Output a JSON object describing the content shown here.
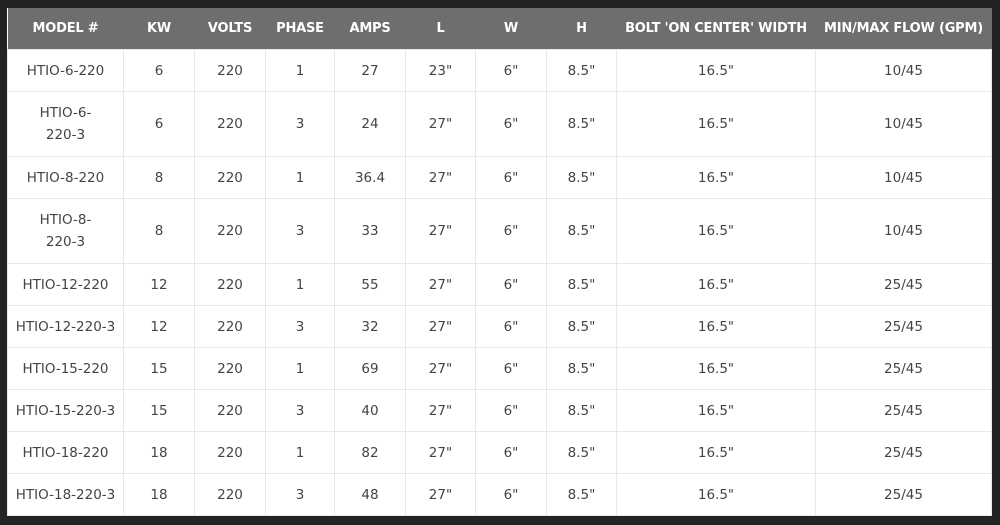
{
  "table": {
    "headers": [
      "MODEL #",
      "KW",
      "VOLTS",
      "PHASE",
      "AMPS",
      "L",
      "W",
      "H",
      "BOLT 'ON CENTER' WIDTH",
      "MIN/MAX FLOW (GPM)"
    ],
    "rows": [
      [
        "HTIO-6-220",
        "6",
        "220",
        "1",
        "27",
        "23\"",
        "6\"",
        "8.5\"",
        "16.5\"",
        "10/45"
      ],
      [
        "HTIO-6-220-3",
        "6",
        "220",
        "3",
        "24",
        "27\"",
        "6\"",
        "8.5\"",
        "16.5\"",
        "10/45"
      ],
      [
        "HTIO-8-220",
        "8",
        "220",
        "1",
        "36.4",
        "27\"",
        "6\"",
        "8.5\"",
        "16.5\"",
        "10/45"
      ],
      [
        "HTIO-8-220-3",
        "8",
        "220",
        "3",
        "33",
        "27\"",
        "6\"",
        "8.5\"",
        "16.5\"",
        "10/45"
      ],
      [
        "HTIO-12-220",
        "12",
        "220",
        "1",
        "55",
        "27\"",
        "6\"",
        "8.5\"",
        "16.5\"",
        "25/45"
      ],
      [
        "HTIO-12-220-3",
        "12",
        "220",
        "3",
        "32",
        "27\"",
        "6\"",
        "8.5\"",
        "16.5\"",
        "25/45"
      ],
      [
        "HTIO-15-220",
        "15",
        "220",
        "1",
        "69",
        "27\"",
        "6\"",
        "8.5\"",
        "16.5\"",
        "25/45"
      ],
      [
        "HTIO-15-220-3",
        "15",
        "220",
        "3",
        "40",
        "27\"",
        "6\"",
        "8.5\"",
        "16.5\"",
        "25/45"
      ],
      [
        "HTIO-18-220",
        "18",
        "220",
        "1",
        "82",
        "27\"",
        "6\"",
        "8.5\"",
        "16.5\"",
        "25/45"
      ],
      [
        "HTIO-18-220-3",
        "18",
        "220",
        "3",
        "48",
        "27\"",
        "6\"",
        "8.5\"",
        "16.5\"",
        "25/45"
      ]
    ]
  }
}
